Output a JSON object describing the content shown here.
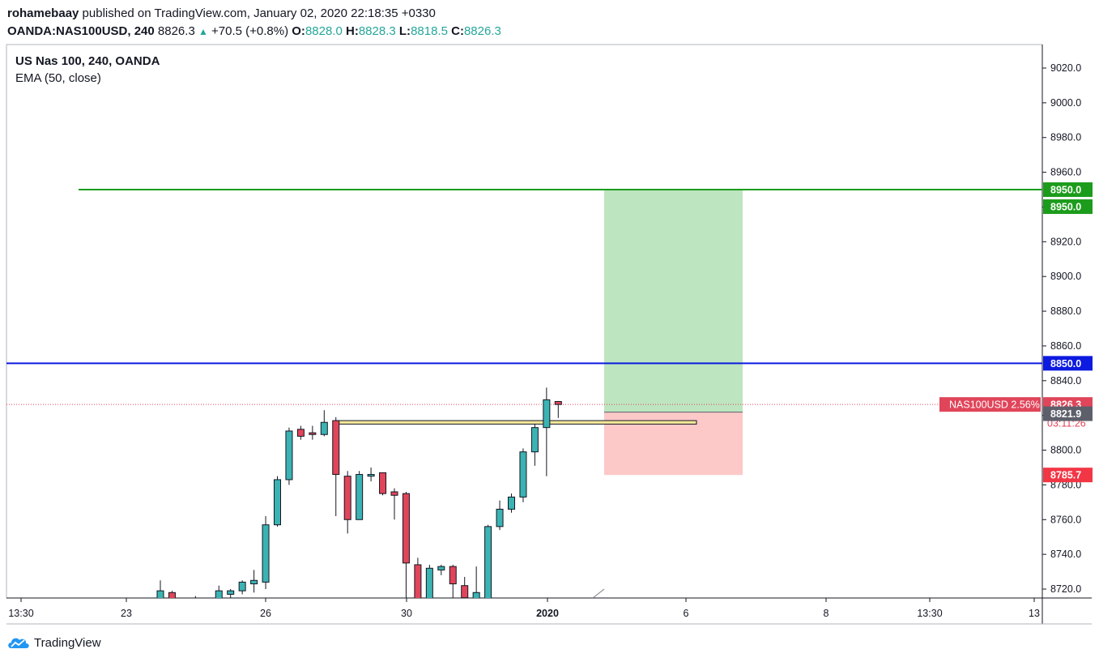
{
  "header": {
    "publisher": "rohamebaay",
    "published_text": "published on TradingView.com, January 02, 2020 22:18:35 +0330",
    "symbol_interval": "OANDA:NAS100USD, 240",
    "last": "8826.3",
    "change_arrow": "▲",
    "change": "+70.5 (+0.8%)",
    "o_label": "O:",
    "o_value": "8828.0",
    "h_label": "H:",
    "h_value": "8828.3",
    "l_label": "L:",
    "l_value": "8818.5",
    "c_label": "C:",
    "c_value": "8826.3"
  },
  "legend": {
    "title": "US Nas 100, 240, OANDA",
    "indicator": "EMA (50, close)"
  },
  "footer": {
    "brand": "TradingView",
    "logo_icon": "tradingview-cloud-icon"
  },
  "chart_data": {
    "type": "candlestick",
    "title": "US Nas 100, 240, OANDA",
    "y_ticks": [
      8720,
      8740,
      8760,
      8780,
      8800,
      8820,
      8840,
      8860,
      8880,
      8900,
      8920,
      8940,
      8960,
      8980,
      9000,
      9020
    ],
    "ylim": [
      8715,
      9045
    ],
    "x_tick_labels": [
      "13:30",
      "23",
      "26",
      "30",
      "2020",
      "6",
      "8",
      "13:30",
      "13"
    ],
    "x_bold_labels": [
      "2020"
    ],
    "colors": {
      "up": "#3bb3b3",
      "down": "#e0455a",
      "wick": "#131722"
    },
    "candles": [
      {
        "o": 8712,
        "h": 8725,
        "l": 8705,
        "c": 8719
      },
      {
        "o": 8718,
        "h": 8719,
        "l": 8700,
        "c": 8705
      },
      {
        "o": 8710,
        "h": 8714,
        "l": 8700,
        "c": 8711
      },
      {
        "o": 8712,
        "h": 8716,
        "l": 8706,
        "c": 8714
      },
      {
        "o": 8712,
        "h": 8715,
        "l": 8706,
        "c": 8709
      },
      {
        "o": 8713,
        "h": 8722,
        "l": 8712,
        "c": 8719
      },
      {
        "o": 8717,
        "h": 8720,
        "l": 8715,
        "c": 8719
      },
      {
        "o": 8719,
        "h": 8725,
        "l": 8717,
        "c": 8724
      },
      {
        "o": 8723,
        "h": 8731,
        "l": 8718,
        "c": 8725
      },
      {
        "o": 8724,
        "h": 8762,
        "l": 8720,
        "c": 8757
      },
      {
        "o": 8757,
        "h": 8785,
        "l": 8756,
        "c": 8783
      },
      {
        "o": 8783,
        "h": 8813,
        "l": 8780,
        "c": 8811
      },
      {
        "o": 8812,
        "h": 8814,
        "l": 8806,
        "c": 8808
      },
      {
        "o": 8810,
        "h": 8814,
        "l": 8806,
        "c": 8809
      },
      {
        "o": 8809,
        "h": 8823,
        "l": 8808,
        "c": 8816
      },
      {
        "o": 8817,
        "h": 8819,
        "l": 8762,
        "c": 8786
      },
      {
        "o": 8785,
        "h": 8788,
        "l": 8752,
        "c": 8760
      },
      {
        "o": 8760,
        "h": 8788,
        "l": 8760,
        "c": 8786
      },
      {
        "o": 8785,
        "h": 8790,
        "l": 8782,
        "c": 8786
      },
      {
        "o": 8787,
        "h": 8787,
        "l": 8774,
        "c": 8775
      },
      {
        "o": 8776,
        "h": 8778,
        "l": 8760,
        "c": 8774
      },
      {
        "o": 8775,
        "h": 8776,
        "l": 8705,
        "c": 8735
      },
      {
        "o": 8734,
        "h": 8738,
        "l": 8705,
        "c": 8712
      },
      {
        "o": 8712,
        "h": 8734,
        "l": 8705,
        "c": 8732
      },
      {
        "o": 8731,
        "h": 8734,
        "l": 8728,
        "c": 8733
      },
      {
        "o": 8733,
        "h": 8734,
        "l": 8712,
        "c": 8723
      },
      {
        "o": 8722,
        "h": 8727,
        "l": 8706,
        "c": 8715
      },
      {
        "o": 8712,
        "h": 8733,
        "l": 8705,
        "c": 8718
      },
      {
        "o": 8712,
        "h": 8757,
        "l": 8706,
        "c": 8756
      },
      {
        "o": 8756,
        "h": 8771,
        "l": 8754,
        "c": 8766
      },
      {
        "o": 8766,
        "h": 8775,
        "l": 8764,
        "c": 8773
      },
      {
        "o": 8773,
        "h": 8801,
        "l": 8770,
        "c": 8799
      },
      {
        "o": 8799,
        "h": 8815,
        "l": 8791,
        "c": 8813
      },
      {
        "o": 8813,
        "h": 8836,
        "l": 8785,
        "c": 8829
      },
      {
        "o": 8828,
        "h": 8828.3,
        "l": 8818.5,
        "c": 8826.3
      }
    ],
    "horizontal_lines": [
      {
        "price": 8950.0,
        "color": "#1c9c1c",
        "label": "8950.0"
      },
      {
        "price": 8850.0,
        "color": "#0d1ae0",
        "label": "8850.0"
      }
    ],
    "last_price_line": {
      "price": 8826.3,
      "color": "#e0455a",
      "symbol_label": "NAS100USD 2.56%",
      "label": "8826.3",
      "countdown": "03:11:26"
    },
    "position": {
      "type": "long",
      "entry": 8821.9,
      "target": 8950.0,
      "stop": 8785.7,
      "target_color": "#1c9c1c",
      "stop_color": "#f23645",
      "entry_color": "#5d606b",
      "target_label": "8950.0",
      "entry_label": "8821.9",
      "stop_label": "8785.7"
    },
    "zone": {
      "top": 8817,
      "bottom": 8815,
      "color": "#f5e89a"
    },
    "grid": false
  }
}
